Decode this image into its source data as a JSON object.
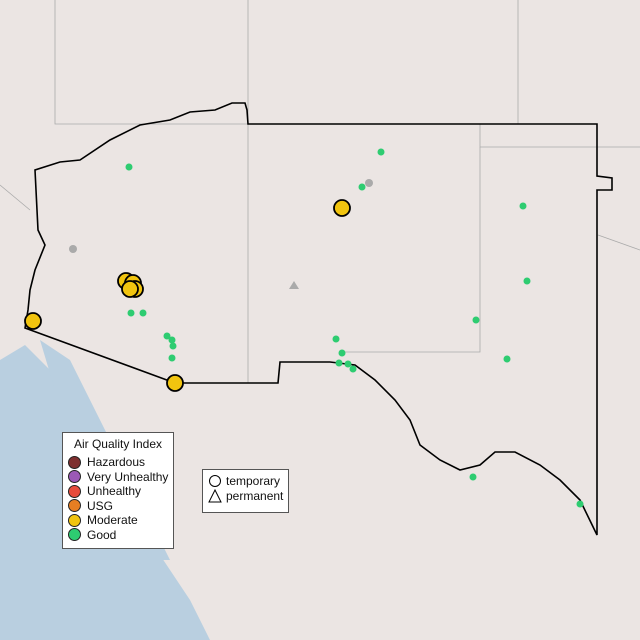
{
  "legend": {
    "title": "Air Quality Index",
    "items": [
      {
        "label": "Hazardous",
        "color": "#7e2f2f"
      },
      {
        "label": "Very Unhealthy",
        "color": "#9b59b6"
      },
      {
        "label": "Unhealthy",
        "color": "#e74c3c"
      },
      {
        "label": "USG",
        "color": "#e67e22"
      },
      {
        "label": "Moderate",
        "color": "#f1c40f"
      },
      {
        "label": "Good",
        "color": "#2ecc71"
      }
    ]
  },
  "shape_legend": {
    "temporary": "temporary",
    "permanent": "permanent"
  }
}
